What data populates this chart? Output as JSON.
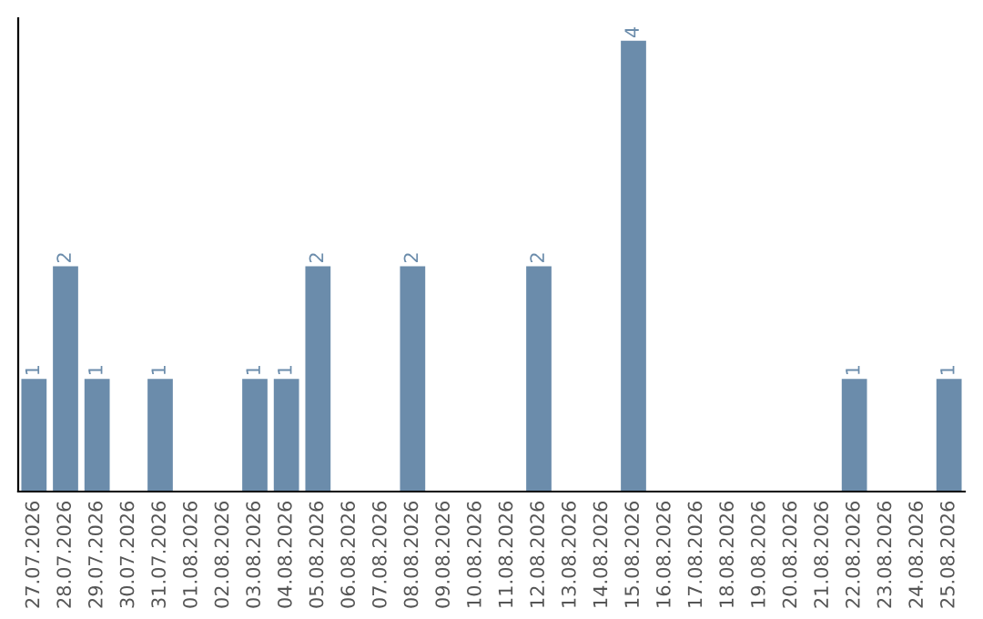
{
  "chart_data": {
    "type": "bar",
    "categories": [
      "27.07.2026",
      "28.07.2026",
      "29.07.2026",
      "30.07.2026",
      "31.07.2026",
      "01.08.2026",
      "02.08.2026",
      "03.08.2026",
      "04.08.2026",
      "05.08.2026",
      "06.08.2026",
      "07.08.2026",
      "08.08.2026",
      "09.08.2026",
      "10.08.2026",
      "11.08.2026",
      "12.08.2026",
      "13.08.2026",
      "14.08.2026",
      "15.08.2026",
      "16.08.2026",
      "17.08.2026",
      "18.08.2026",
      "19.08.2026",
      "20.08.2026",
      "21.08.2026",
      "22.08.2026",
      "23.08.2026",
      "24.08.2026",
      "25.08.2026"
    ],
    "values": [
      1,
      2,
      1,
      0,
      1,
      0,
      0,
      1,
      1,
      2,
      0,
      0,
      2,
      0,
      0,
      0,
      2,
      0,
      0,
      4,
      0,
      0,
      0,
      0,
      0,
      0,
      1,
      0,
      0,
      1
    ],
    "value_labels": [
      "1",
      "2",
      "1",
      null,
      "1",
      null,
      null,
      "1",
      "1",
      "2",
      null,
      null,
      "2",
      null,
      null,
      null,
      "2",
      null,
      null,
      "4",
      null,
      null,
      null,
      null,
      null,
      null,
      "1",
      null,
      null,
      "1"
    ],
    "color": "#6b8cab",
    "ylim": [
      0,
      4.2
    ],
    "tick_labels": "x",
    "grid": false,
    "legend": false
  }
}
